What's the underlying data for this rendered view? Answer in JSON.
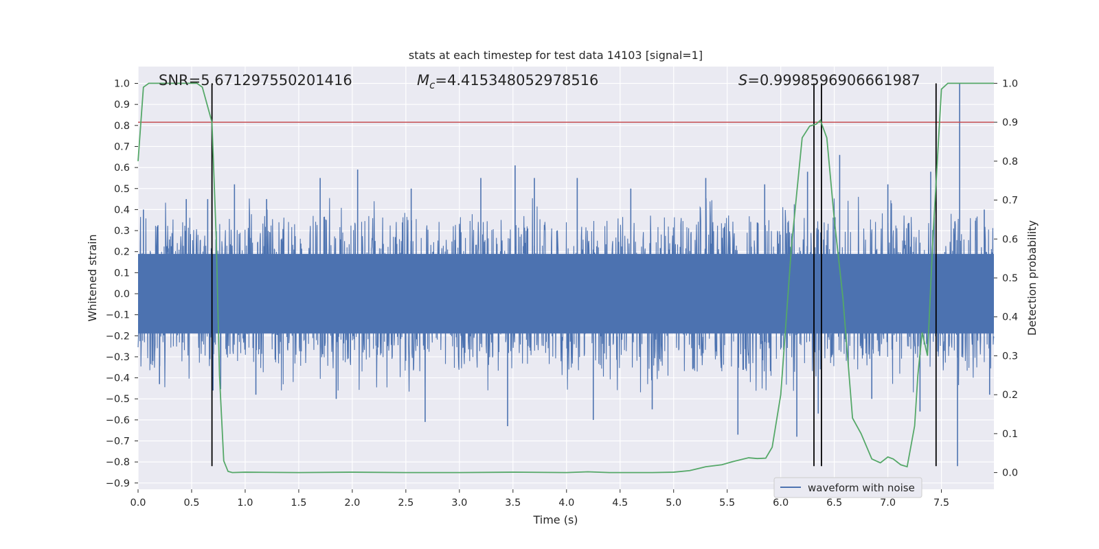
{
  "chart_data": {
    "type": "line",
    "title": "stats at each timestep for test data 14103 [signal=1]",
    "xlabel": "Time (s)",
    "ylabel_left": "Whitened strain",
    "ylabel_right": "Detection probability",
    "xlim": [
      0.0,
      7.99
    ],
    "ylim_left": [
      -0.93,
      1.08
    ],
    "ylim_right": [
      -0.043,
      1.043
    ],
    "x_ticks": [
      0.0,
      0.5,
      1.0,
      1.5,
      2.0,
      2.5,
      3.0,
      3.5,
      4.0,
      4.5,
      5.0,
      5.5,
      6.0,
      6.5,
      7.0,
      7.5
    ],
    "x_tick_labels": [
      "0.0",
      "0.5",
      "1.0",
      "1.5",
      "2.0",
      "2.5",
      "3.0",
      "3.5",
      "4.0",
      "4.5",
      "5.0",
      "5.5",
      "6.0",
      "6.5",
      "7.0",
      "7.5"
    ],
    "y_left_ticks": [
      1.0,
      0.9,
      0.8,
      0.7,
      0.6,
      0.5,
      0.4,
      0.3,
      0.2,
      0.1,
      0.0,
      -0.1,
      -0.2,
      -0.3,
      -0.4,
      -0.5,
      -0.6,
      -0.7,
      -0.8,
      -0.9
    ],
    "y_left_tick_labels": [
      "1.0",
      "0.9",
      "0.8",
      "0.7",
      "0.6",
      "0.5",
      "0.4",
      "0.3",
      "0.2",
      "0.1",
      "0.0",
      "−0.1",
      "−0.2",
      "−0.3",
      "−0.4",
      "−0.5",
      "−0.6",
      "−0.7",
      "−0.8",
      "−0.9"
    ],
    "y_right_ticks": [
      1.0,
      0.9,
      0.8,
      0.7,
      0.6,
      0.5,
      0.4,
      0.3,
      0.2,
      0.1,
      0.0
    ],
    "y_right_tick_labels": [
      "1.0",
      "0.9",
      "0.8",
      "0.7",
      "0.6",
      "0.5",
      "0.4",
      "0.3",
      "0.2",
      "0.1",
      "0.0"
    ],
    "grid": true,
    "legend": {
      "placement": "lower-right",
      "entries": [
        "waveform with noise"
      ]
    },
    "annotations": {
      "snr": "SNR=5.671297550201416",
      "mc_symbol": "M",
      "mc_subscript": "c",
      "mc_value": "=4.415348052978516",
      "s_symbol": "S",
      "s_value": "=0.9998596906661987"
    },
    "series": [
      {
        "name": "waveform with noise",
        "axis": "left",
        "color": "#4c72b0",
        "core_amplitude": 0.27,
        "spike_positive_peaks": [
          [
            0.05,
            0.4
          ],
          [
            0.45,
            0.45
          ],
          [
            0.65,
            0.45
          ],
          [
            0.9,
            0.52
          ],
          [
            1.2,
            0.45
          ],
          [
            1.7,
            0.55
          ],
          [
            2.05,
            0.59
          ],
          [
            2.55,
            0.5
          ],
          [
            3.2,
            0.55
          ],
          [
            3.52,
            0.61
          ],
          [
            3.7,
            0.55
          ],
          [
            4.1,
            0.55
          ],
          [
            4.6,
            0.5
          ],
          [
            5.3,
            0.55
          ],
          [
            5.85,
            0.52
          ],
          [
            6.25,
            0.58
          ],
          [
            6.55,
            0.66
          ],
          [
            7.0,
            0.52
          ],
          [
            7.4,
            0.58
          ],
          [
            7.67,
            1.0
          ],
          [
            7.9,
            0.4
          ]
        ],
        "spike_negative_peaks": [
          [
            0.2,
            -0.43
          ],
          [
            0.7,
            -0.46
          ],
          [
            1.1,
            -0.48
          ],
          [
            1.85,
            -0.5
          ],
          [
            2.68,
            -0.61
          ],
          [
            3.45,
            -0.63
          ],
          [
            4.25,
            -0.6
          ],
          [
            4.8,
            -0.55
          ],
          [
            5.6,
            -0.67
          ],
          [
            6.15,
            -0.68
          ],
          [
            6.35,
            -0.57
          ],
          [
            6.85,
            -0.5
          ],
          [
            7.3,
            -0.56
          ],
          [
            7.65,
            -0.82
          ],
          [
            7.95,
            -0.48
          ]
        ]
      },
      {
        "name": "",
        "axis": "right",
        "color": "#55a868",
        "x": [
          0.0,
          0.05,
          0.1,
          0.2,
          0.3,
          0.4,
          0.5,
          0.55,
          0.6,
          0.64,
          0.69,
          0.73,
          0.76,
          0.8,
          0.84,
          0.88,
          1.0,
          1.5,
          2.0,
          2.5,
          3.0,
          3.5,
          4.0,
          4.2,
          4.4,
          4.8,
          5.0,
          5.15,
          5.3,
          5.45,
          5.55,
          5.7,
          5.78,
          5.86,
          5.92,
          6.0,
          6.1,
          6.2,
          6.27,
          6.33,
          6.37,
          6.43,
          6.5,
          6.58,
          6.67,
          6.75,
          6.85,
          6.93,
          7.0,
          7.05,
          7.12,
          7.18,
          7.25,
          7.28,
          7.32,
          7.37,
          7.42,
          7.5,
          7.56,
          7.6,
          7.7,
          7.99
        ],
        "values": [
          0.8,
          0.99,
          1.0,
          1.0,
          1.0,
          1.0,
          1.0,
          1.0,
          0.99,
          0.95,
          0.9,
          0.6,
          0.25,
          0.03,
          0.003,
          0.0,
          0.001,
          0.0,
          0.001,
          0.0,
          0.0,
          0.001,
          0.0,
          0.002,
          0.0,
          0.0,
          0.001,
          0.005,
          0.015,
          0.02,
          0.028,
          0.038,
          0.036,
          0.037,
          0.065,
          0.2,
          0.58,
          0.86,
          0.89,
          0.895,
          0.905,
          0.86,
          0.65,
          0.45,
          0.14,
          0.1,
          0.035,
          0.025,
          0.04,
          0.035,
          0.02,
          0.015,
          0.12,
          0.25,
          0.36,
          0.3,
          0.6,
          0.985,
          1.0,
          1.0,
          1.0,
          1.0
        ]
      }
    ],
    "threshold_line": {
      "axis": "right",
      "value": 0.9,
      "color": "#c44e52"
    },
    "vertical_markers": {
      "x": [
        0.69,
        6.31,
        6.38,
        7.45
      ],
      "left_range": [
        -0.82,
        1.0
      ],
      "color": "#000000"
    }
  }
}
